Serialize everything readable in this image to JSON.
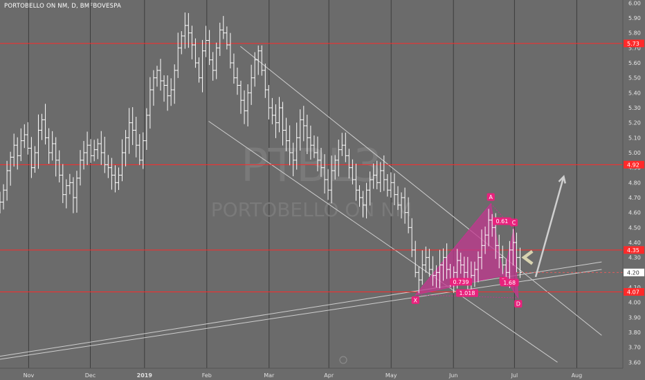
{
  "chart_title": "PORTOBELLO ON NM, D, BMFBOVESPA",
  "watermark": {
    "symbol": "PTBL3",
    "name": "PORTOBELLO ON NM"
  },
  "colors": {
    "background": "#6b6b6b",
    "bars": "#ffffff",
    "level": "#ff2a2a",
    "level_label_bg": "#ff2a2a",
    "current_price_bg": "#ffffff",
    "pattern_fill": "#c2378f",
    "pattern_label_bg": "#e9227d",
    "trend": "#cfcfcf",
    "gridline": "#3c3c3c",
    "arrow": "#d0d0d0",
    "chevron": "#d8d3b0"
  },
  "chart_data": {
    "type": "ohlc-bar",
    "title": "PORTOBELLO ON NM, D, BMFBOVESPA",
    "ylim": [
      3.56,
      6.02
    ],
    "y_ticks": [
      3.6,
      3.7,
      3.8,
      3.9,
      4.0,
      4.1,
      4.2,
      4.3,
      4.4,
      4.5,
      4.6,
      4.7,
      4.8,
      4.9,
      5.0,
      5.1,
      5.2,
      5.3,
      5.4,
      5.5,
      5.6,
      5.7,
      5.8,
      5.9,
      6.0
    ],
    "y_tick_labels": [
      "3.60",
      "3.70",
      "3.80",
      "3.90",
      "4.00",
      "4.10",
      "4.20",
      "4.30",
      "4.40",
      "4.50",
      "4.60",
      "4.70",
      "4.80",
      "4.90",
      "5.00",
      "5.10",
      "5.20",
      "5.30",
      "5.40",
      "5.50",
      "5.60",
      "5.70",
      "5.80",
      "5.90",
      "6.00"
    ],
    "x_axis_labels": [
      "Nov",
      "Dec",
      "2019",
      "Feb",
      "Mar",
      "Apr",
      "May",
      "Jun",
      "Jul",
      "Aug"
    ],
    "current_price": {
      "value": 4.2,
      "label": "4.20"
    },
    "levels": [
      {
        "value": 5.73,
        "label": "5.73"
      },
      {
        "value": 4.92,
        "label": "4.92"
      },
      {
        "value": 4.35,
        "label": "4.35"
      },
      {
        "value": 4.07,
        "label": "4.07"
      }
    ],
    "pattern": {
      "type": "harmonic",
      "points": [
        {
          "name": "X",
          "label": "X",
          "t": 0.667,
          "value": 4.05
        },
        {
          "name": "A",
          "label": "A",
          "t": 0.788,
          "value": 4.66
        },
        {
          "name": "B",
          "label": "B",
          "t": 0.808,
          "value": 4.18
        },
        {
          "name": "C",
          "label": "C",
          "t": 0.825,
          "value": 4.49
        },
        {
          "name": "D",
          "label": "D",
          "t": 0.832,
          "value": 4.03
        }
      ],
      "ratios": [
        {
          "label": "0.739",
          "t": 0.74,
          "value": 4.135
        },
        {
          "label": "0.61",
          "t": 0.806,
          "value": 4.54
        },
        {
          "label": "1.68",
          "t": 0.818,
          "value": 4.13
        },
        {
          "label": "1.018",
          "t": 0.75,
          "value": 4.06
        }
      ]
    },
    "trendlines": [
      {
        "name": "channel-upper",
        "points": [
          [
            0.386,
            5.71
          ],
          [
            0.966,
            3.78
          ]
        ]
      },
      {
        "name": "channel-lower",
        "points": [
          [
            0.335,
            5.21
          ],
          [
            0.895,
            3.6
          ]
        ]
      },
      {
        "name": "long-support",
        "points": [
          [
            0.0,
            3.64
          ],
          [
            0.966,
            4.27
          ]
        ]
      },
      {
        "name": "long-support-2",
        "points": [
          [
            0.0,
            3.62
          ],
          [
            0.966,
            4.22
          ]
        ]
      },
      {
        "name": "projection-arrow",
        "points": [
          [
            0.86,
            4.17
          ],
          [
            0.905,
            4.84
          ]
        ]
      }
    ],
    "bars": {
      "start_t": 0.0,
      "end_t": 0.835,
      "closes": [
        4.67,
        4.75,
        4.88,
        4.97,
        5.05,
        4.98,
        5.08,
        5.12,
        5.03,
        4.9,
        5.0,
        5.15,
        5.22,
        5.1,
        5.0,
        5.06,
        4.95,
        4.85,
        4.72,
        4.78,
        4.8,
        4.7,
        4.83,
        4.95,
        5.0,
        5.05,
        4.98,
        5.02,
        5.06,
        5.0,
        4.92,
        4.9,
        4.85,
        4.8,
        4.85,
        5.0,
        5.1,
        5.2,
        5.15,
        5.05,
        4.95,
        5.08,
        5.25,
        5.42,
        5.5,
        5.55,
        5.48,
        5.45,
        5.38,
        5.42,
        5.55,
        5.7,
        5.78,
        5.85,
        5.8,
        5.72,
        5.6,
        5.5,
        5.68,
        5.75,
        5.62,
        5.55,
        5.7,
        5.82,
        5.8,
        5.72,
        5.6,
        5.5,
        5.45,
        5.35,
        5.28,
        5.4,
        5.5,
        5.62,
        5.68,
        5.55,
        5.42,
        5.3,
        5.25,
        5.2,
        5.3,
        5.15,
        5.08,
        5.0,
        4.95,
        5.1,
        5.22,
        5.18,
        5.1,
        5.05,
        5.0,
        4.95,
        4.9,
        4.82,
        4.75,
        4.88,
        4.95,
        5.02,
        5.05,
        4.98,
        4.9,
        4.82,
        4.75,
        4.7,
        4.65,
        4.75,
        4.82,
        4.85,
        4.8,
        4.88,
        4.82,
        4.75,
        4.8,
        4.72,
        4.65,
        4.7,
        4.6,
        4.5,
        4.35,
        4.2,
        4.15,
        4.25,
        4.3,
        4.22,
        4.18,
        4.2,
        4.25,
        4.3,
        4.22,
        4.15,
        4.2,
        4.28,
        4.25,
        4.2,
        4.15,
        4.18,
        4.22,
        4.3,
        4.38,
        4.45,
        4.55,
        4.5,
        4.38,
        4.3,
        4.25,
        4.2,
        4.35,
        4.4,
        4.3,
        4.2
      ]
    }
  }
}
